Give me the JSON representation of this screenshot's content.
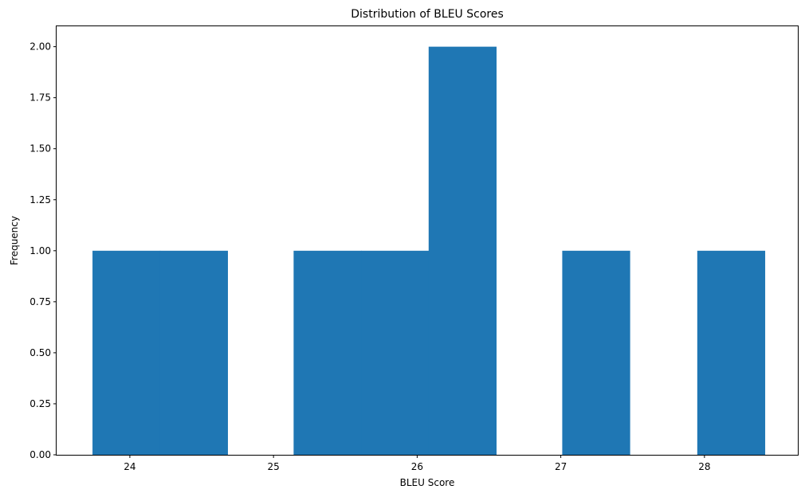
{
  "chart_data": {
    "type": "bar",
    "title": "Distribution of BLEU Scores",
    "xlabel": "BLEU Score",
    "ylabel": "Frequency",
    "xlim": [
      23.49,
      28.65
    ],
    "ylim": [
      0,
      2.1
    ],
    "xticks": [
      "24",
      "25",
      "26",
      "27",
      "28"
    ],
    "xtick_values": [
      24,
      25,
      26,
      27,
      28
    ],
    "yticks": [
      "0.00",
      "0.25",
      "0.50",
      "0.75",
      "1.00",
      "1.25",
      "1.50",
      "1.75",
      "2.00"
    ],
    "ytick_values": [
      0,
      0.25,
      0.5,
      0.75,
      1.0,
      1.25,
      1.5,
      1.75,
      2.0
    ],
    "bins": [
      {
        "x0": 23.74,
        "x1": 24.21,
        "count": 1
      },
      {
        "x0": 24.21,
        "x1": 24.68,
        "count": 1
      },
      {
        "x0": 24.68,
        "x1": 25.14,
        "count": 0
      },
      {
        "x0": 25.14,
        "x1": 25.61,
        "count": 1
      },
      {
        "x0": 25.61,
        "x1": 26.08,
        "count": 1
      },
      {
        "x0": 26.08,
        "x1": 26.55,
        "count": 2
      },
      {
        "x0": 26.55,
        "x1": 27.01,
        "count": 0
      },
      {
        "x0": 27.01,
        "x1": 27.48,
        "count": 1
      },
      {
        "x0": 27.48,
        "x1": 27.95,
        "count": 0
      },
      {
        "x0": 27.95,
        "x1": 28.42,
        "count": 1
      }
    ],
    "bar_color": "#1f77b4",
    "grid": false,
    "legend": false
  }
}
